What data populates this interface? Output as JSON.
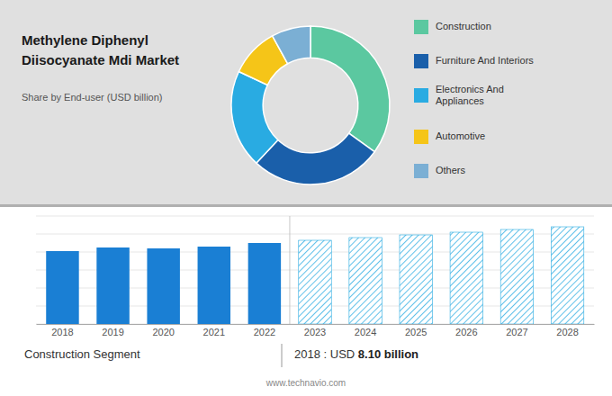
{
  "chart_data": [
    {
      "type": "pie",
      "title": "Methylene Diphenyl\nDiisocyanate Mdi Market",
      "subtitle": "Share by End-user (USD billion)",
      "categories": [
        "Construction",
        "Furniture And Interiors",
        "Electronics And\nAppliances",
        "Automotive",
        "Others"
      ],
      "values": [
        0.35,
        0.27,
        0.2,
        0.1,
        0.08
      ],
      "colors": [
        "#5bc8a0",
        "#1a5faa",
        "#29abe2",
        "#f5c518",
        "#7bafd4"
      ],
      "legend": "right"
    },
    {
      "type": "bar",
      "categories": [
        "2018",
        "2019",
        "2020",
        "2021",
        "2022",
        "2023",
        "2024",
        "2025",
        "2026",
        "2027",
        "2028"
      ],
      "values": [
        8.1,
        8.5,
        8.4,
        8.6,
        9.0,
        9.3,
        9.6,
        9.9,
        10.2,
        10.5,
        10.8
      ],
      "color": "#1a7fd4",
      "colors": [
        "#1a7fd4",
        "#1a7fd4",
        "#1a7fd4",
        "#1a7fd4",
        "#1a7fd4",
        "#29abe2",
        "#29abe2",
        "#29abe2",
        "#29abe2",
        "#29abe2",
        "#29abe2"
      ],
      "ylim": [
        0,
        12
      ],
      "yticks": [
        0,
        2,
        4,
        6,
        8,
        10,
        12
      ],
      "grid": true,
      "tick_labels": "x",
      "annotations": [
        "Construction Segment",
        "2018 : USD ",
        "8.10 billion",
        "www.technavio.com"
      ]
    }
  ]
}
